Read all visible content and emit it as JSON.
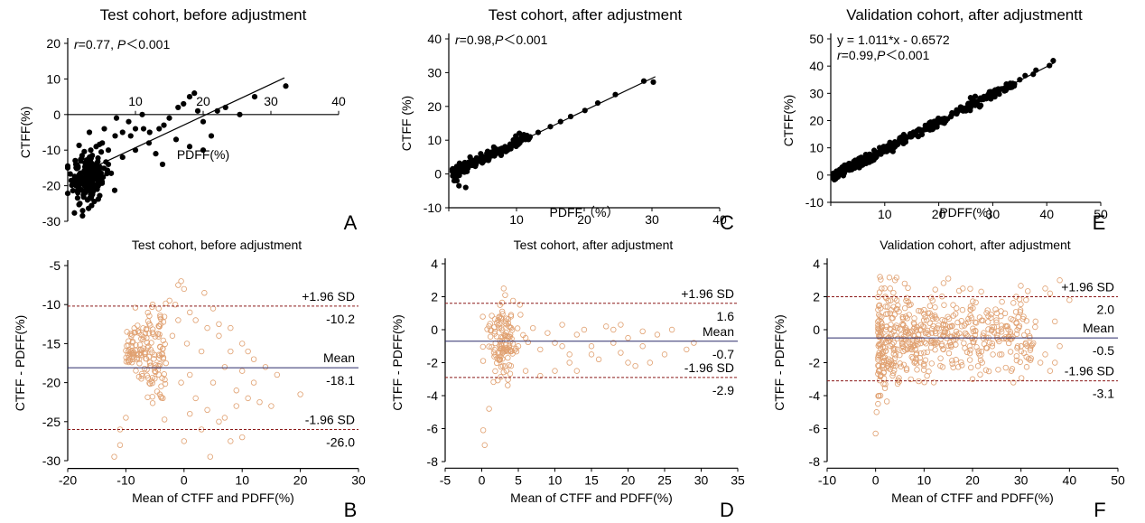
{
  "colors": {
    "scatter_fill": "#000000",
    "ba_circle": "#e0a070",
    "mean_line": "#2a2a6a",
    "limit_line": "#8b1a1a"
  },
  "chart_data": [
    {
      "id": "A",
      "panel_letter": "A",
      "type": "scatter",
      "title": "Test cohort, before adjustment",
      "xlabel": "PDFF(%)",
      "ylabel": "CTFF(%)",
      "xlim": [
        0,
        40
      ],
      "ylim": [
        -30,
        20
      ],
      "xticks": [
        0,
        10,
        20,
        30,
        40
      ],
      "yticks": [
        -30,
        -20,
        -10,
        0,
        10,
        20
      ],
      "xtick_labels": [
        "",
        "10",
        "20",
        "30",
        "40"
      ],
      "ytick_labels": [
        "-30",
        "-20",
        "-10",
        "0",
        "10",
        "20"
      ],
      "annotation_lines": [
        {
          "r": "r",
          "rest": "=0.77, ",
          "p": "P",
          "tail": "＜0.001"
        }
      ],
      "fit_line": {
        "x": [
          1.5,
          32
        ],
        "y": [
          -16.9,
          10.3
        ]
      },
      "points_xy": [
        [
          1.5,
          -22
        ],
        [
          1.8,
          -25
        ],
        [
          2.2,
          -27
        ],
        [
          1.2,
          -14
        ],
        [
          2.5,
          -20
        ],
        [
          3.4,
          -10
        ],
        [
          4.2,
          -9
        ],
        [
          5.1,
          -8
        ],
        [
          6,
          -10
        ],
        [
          7,
          -6
        ],
        [
          8.1,
          -5
        ],
        [
          9.3,
          -6
        ],
        [
          10,
          -4
        ],
        [
          11.2,
          -4
        ],
        [
          12.1,
          -5
        ],
        [
          13,
          -11
        ],
        [
          14.2,
          -3
        ],
        [
          15,
          -1
        ],
        [
          16.3,
          2
        ],
        [
          17.1,
          3
        ],
        [
          18,
          5
        ],
        [
          18.7,
          6
        ],
        [
          19.2,
          1
        ],
        [
          20,
          -2
        ],
        [
          21.2,
          -6
        ],
        [
          22.1,
          1
        ],
        [
          23.3,
          2
        ],
        [
          25.4,
          0
        ],
        [
          27.6,
          5
        ],
        [
          32.2,
          8
        ],
        [
          8.1,
          -12
        ],
        [
          10,
          -10
        ],
        [
          12,
          -8
        ],
        [
          14,
          -14
        ],
        [
          16,
          -7
        ],
        [
          18,
          -9
        ],
        [
          20,
          -10
        ],
        [
          3.5,
          -17
        ],
        [
          4.5,
          -20
        ],
        [
          6,
          -14
        ],
        [
          2.8,
          -13
        ],
        [
          3.2,
          -5
        ],
        [
          5.4,
          -4
        ],
        [
          7.2,
          -1
        ],
        [
          9,
          -2
        ],
        [
          11,
          0
        ],
        [
          13.5,
          -4
        ]
      ],
      "dense_cluster": {
        "x_range": [
          0.8,
          5.5
        ],
        "y_range": [
          -25,
          -10
        ],
        "count": 180
      },
      "x_axis_at_y": 0
    },
    {
      "id": "C",
      "panel_letter": "C",
      "type": "scatter",
      "title": "Test cohort, after adjustment",
      "xlabel": "PDFF（%）",
      "ylabel": "CTFF (%)",
      "xlim": [
        0,
        40
      ],
      "ylim": [
        -10,
        40
      ],
      "xticks": [
        0,
        10,
        20,
        30,
        40
      ],
      "yticks": [
        -10,
        0,
        10,
        20,
        30,
        40
      ],
      "xtick_labels": [
        "",
        "10",
        "20",
        "30",
        "40"
      ],
      "ytick_labels": [
        "-10",
        "0",
        "10",
        "20",
        "30",
        "40"
      ],
      "annotation_lines": [
        {
          "r": "r",
          "rest": "=0.98,",
          "p": "P",
          "tail": "＜0.001"
        }
      ],
      "fit_line": {
        "x": [
          0.5,
          30.5
        ],
        "y": [
          0,
          28.8
        ]
      },
      "points_xy": [
        [
          28.8,
          27.5
        ],
        [
          30.2,
          27.2
        ],
        [
          24.6,
          23.5
        ],
        [
          22,
          21
        ],
        [
          20.1,
          18.8
        ],
        [
          18,
          17
        ],
        [
          16.5,
          15.5
        ],
        [
          15,
          14
        ],
        [
          13.2,
          12.3
        ],
        [
          12,
          11
        ],
        [
          10.8,
          10
        ],
        [
          9.5,
          8.5
        ],
        [
          8,
          7.2
        ],
        [
          7,
          6
        ],
        [
          6.1,
          5.3
        ],
        [
          5,
          4.2
        ],
        [
          4,
          3.6
        ],
        [
          3,
          2.4
        ],
        [
          2,
          1.5
        ],
        [
          1.2,
          -2
        ],
        [
          2.5,
          -4
        ],
        [
          1.5,
          -3.5
        ],
        [
          0.8,
          -2
        ]
      ],
      "dense_cluster": {
        "x_range": [
          0.5,
          12
        ],
        "y_range": [
          -1,
          11
        ],
        "count": 160,
        "linear": {
          "slope": 0.96,
          "intercept": -0.2,
          "jitter": 1.6
        }
      },
      "x_axis_at_y": -10
    },
    {
      "id": "E",
      "panel_letter": "E",
      "type": "scatter",
      "title": "Validation cohort, after adjustmentt",
      "xlabel": "PDFF(%)",
      "ylabel": "CTFF(%)",
      "xlim": [
        0,
        50
      ],
      "ylim": [
        -10,
        50
      ],
      "xticks": [
        0,
        10,
        20,
        30,
        40,
        50
      ],
      "yticks": [
        -10,
        0,
        10,
        20,
        30,
        40,
        50
      ],
      "xtick_labels": [
        "",
        "10",
        "20",
        "30",
        "40",
        "50"
      ],
      "ytick_labels": [
        "-10",
        "0",
        "10",
        "20",
        "30",
        "40",
        "50"
      ],
      "annotation_lines": [
        {
          "r": "",
          "rest": "y = 1.011*x - 0.6572",
          "p": "",
          "tail": ""
        },
        {
          "r": "r",
          "rest": "=0.99,",
          "p": "P",
          "tail": "＜0.001"
        }
      ],
      "fit_line": {
        "x": [
          0.5,
          41.5
        ],
        "y": [
          -0.15,
          41.3
        ]
      },
      "points_xy": [
        [
          41.2,
          42
        ],
        [
          40.5,
          40.2
        ],
        [
          38,
          38.5
        ],
        [
          37.5,
          37
        ],
        [
          36,
          36.5
        ],
        [
          35,
          35
        ],
        [
          34,
          33.4
        ]
      ],
      "dense_cluster": {
        "x_range": [
          0.5,
          34
        ],
        "y_range": [
          -2,
          35
        ],
        "count": 420,
        "linear": {
          "slope": 1.011,
          "intercept": -0.66,
          "jitter": 1.8
        }
      },
      "x_axis_at_y": -10
    },
    {
      "id": "B",
      "panel_letter": "B",
      "type": "scatter",
      "title": "Test cohort, before adjustment",
      "xlabel": "Mean of CTFF and PDFF(%)",
      "ylabel": "CTFF - PDFF(%)",
      "xlim": [
        -20,
        30
      ],
      "ylim": [
        -30,
        -5
      ],
      "xticks": [
        -20,
        -10,
        0,
        10,
        20,
        30
      ],
      "yticks": [
        -30,
        -25,
        -20,
        -15,
        -10,
        -5
      ],
      "xtick_labels": [
        "-20",
        "-10",
        "0",
        "10",
        "20",
        "30"
      ],
      "ytick_labels": [
        "-30",
        "-25",
        "-20",
        "-15",
        "-10",
        "-5"
      ],
      "upper_loa": -10.2,
      "mean": -18.1,
      "lower_loa": -26.0,
      "upper_label": "+1.96 SD",
      "upper_value": "-10.2",
      "mean_label": "Mean",
      "mean_value": "-18.1",
      "lower_label": "-1.96 SD",
      "lower_value": "-26.0",
      "points_xy": [
        [
          -0.5,
          -7
        ],
        [
          0,
          -8
        ],
        [
          -1,
          -7.5
        ],
        [
          3.5,
          -8.5
        ],
        [
          -2.5,
          -9.5
        ],
        [
          -1.5,
          -10
        ],
        [
          1,
          -11
        ],
        [
          2,
          -12
        ],
        [
          4,
          -13
        ],
        [
          6,
          -12.5
        ],
        [
          8,
          -13
        ],
        [
          10,
          -15
        ],
        [
          12,
          -17
        ],
        [
          14,
          -18
        ],
        [
          16,
          -19
        ],
        [
          2,
          -22
        ],
        [
          4,
          -23.5
        ],
        [
          6,
          -25
        ],
        [
          8,
          -27.5
        ],
        [
          10,
          -27
        ],
        [
          0,
          -27.5
        ],
        [
          -12,
          -29.5
        ],
        [
          -11,
          -28
        ],
        [
          -11,
          -26
        ],
        [
          -10,
          -24.5
        ],
        [
          3,
          -16
        ],
        [
          5,
          -20
        ],
        [
          7,
          -18
        ],
        [
          9,
          -21
        ],
        [
          11,
          -22
        ],
        [
          13,
          -22.5
        ],
        [
          15,
          -23
        ],
        [
          1,
          -19
        ],
        [
          0.5,
          -15
        ],
        [
          -0.5,
          -20
        ],
        [
          8,
          -16
        ],
        [
          6,
          -14
        ],
        [
          10,
          -18.5
        ],
        [
          5,
          -10.5
        ],
        [
          -1,
          -12
        ],
        [
          20,
          -21.5
        ],
        [
          4.5,
          -29.5
        ],
        [
          7,
          -24.5
        ],
        [
          9,
          -23
        ],
        [
          1,
          -24
        ],
        [
          3,
          -26
        ],
        [
          12,
          -20
        ],
        [
          11,
          -16
        ],
        [
          -2,
          -14
        ]
      ],
      "dense_cluster": {
        "x_range": [
          -10,
          -3
        ],
        "y_range": [
          -24,
          -11
        ],
        "count": 160,
        "tri": true
      },
      "x_axis_at_y": -31
    },
    {
      "id": "D",
      "panel_letter": "D",
      "type": "scatter",
      "title": "Test cohort, after adjustment",
      "xlabel": "Mean of CTFF and PDFF(%)",
      "ylabel": "CTFF - PDFF(%)",
      "xlim": [
        -5,
        35
      ],
      "ylim": [
        -8,
        4
      ],
      "xticks": [
        -5,
        0,
        5,
        10,
        15,
        20,
        25,
        30,
        35
      ],
      "yticks": [
        -8,
        -6,
        -4,
        -2,
        0,
        2,
        4
      ],
      "xtick_labels": [
        "-5",
        "0",
        "5",
        "10",
        "15",
        "20",
        "25",
        "30",
        "35"
      ],
      "ytick_labels": [
        "-8",
        "-6",
        "-4",
        "-2",
        "0",
        "2",
        "4"
      ],
      "upper_loa": 1.6,
      "mean": -0.7,
      "lower_loa": -2.9,
      "upper_label": "+1.96 SD",
      "upper_value": "1.6",
      "mean_label": "Mean",
      "mean_value": "-0.7",
      "lower_label": "-1.96 SD",
      "lower_value": "-2.9",
      "points_xy": [
        [
          0.2,
          -6.1
        ],
        [
          0.4,
          -7
        ],
        [
          1,
          -4.8
        ],
        [
          3,
          2.5
        ],
        [
          3.2,
          2.1
        ],
        [
          2.5,
          1.5
        ],
        [
          2.8,
          1.1
        ],
        [
          4,
          0.8
        ],
        [
          6,
          -0.5
        ],
        [
          8,
          -1.2
        ],
        [
          10,
          -0.8
        ],
        [
          12,
          -1.5
        ],
        [
          14,
          0
        ],
        [
          16,
          -1.8
        ],
        [
          18,
          0
        ],
        [
          20,
          -0.5
        ],
        [
          22,
          -1
        ],
        [
          24,
          -0.3
        ],
        [
          26,
          0
        ],
        [
          28,
          -1.2
        ],
        [
          29,
          -0.8
        ],
        [
          25,
          -1.5
        ],
        [
          23,
          -2
        ],
        [
          21,
          -2.2
        ],
        [
          19,
          -1.4
        ],
        [
          17,
          0.2
        ],
        [
          15,
          -1
        ],
        [
          13,
          -0.3
        ],
        [
          11,
          0.3
        ],
        [
          9,
          -0.2
        ],
        [
          7,
          0.1
        ],
        [
          5,
          -1
        ],
        [
          8,
          -2.8
        ],
        [
          10,
          -2.5
        ],
        [
          12,
          -2
        ],
        [
          15,
          -1.5
        ],
        [
          18,
          -0.8
        ],
        [
          20,
          -2
        ],
        [
          6,
          -2.5
        ],
        [
          4,
          -2.2
        ],
        [
          11,
          -1
        ],
        [
          13,
          -2.5
        ],
        [
          19,
          0.3
        ],
        [
          22,
          -0.1
        ]
      ],
      "dense_cluster": {
        "x_range": [
          1,
          5
        ],
        "y_range": [
          -3,
          1.5
        ],
        "count": 120
      },
      "x_axis_at_y": -8.4
    },
    {
      "id": "F",
      "panel_letter": "F",
      "type": "scatter",
      "title": "Validation cohort, after adjustment",
      "xlabel": "Mean of CTFF and PDFF(%)",
      "ylabel": "CTFF - PDFF(%)",
      "xlim": [
        -10,
        50
      ],
      "ylim": [
        -8,
        4
      ],
      "xticks": [
        -10,
        0,
        10,
        20,
        30,
        40,
        50
      ],
      "yticks": [
        -8,
        -6,
        -4,
        -2,
        0,
        2,
        4
      ],
      "xtick_labels": [
        "-10",
        "0",
        "10",
        "20",
        "30",
        "40",
        "50"
      ],
      "ytick_labels": [
        "-8",
        "-6",
        "-4",
        "-2",
        "0",
        "2",
        "4"
      ],
      "upper_loa": 2.0,
      "mean": -0.5,
      "lower_loa": -3.1,
      "upper_label": "+1.96 SD",
      "upper_value": "2.0",
      "mean_label": "Mean",
      "mean_value": "-0.5",
      "lower_label": "-1.96 SD",
      "lower_value": "-3.1",
      "points_xy": [
        [
          0,
          -6.3
        ],
        [
          0.2,
          -5
        ],
        [
          0.5,
          -4.5
        ],
        [
          1,
          -4
        ],
        [
          15,
          3.1
        ],
        [
          35,
          2.5
        ],
        [
          38,
          3
        ],
        [
          36,
          2.2
        ],
        [
          40,
          1.8
        ],
        [
          38,
          -1
        ],
        [
          37,
          -2
        ],
        [
          36,
          -2.5
        ],
        [
          34,
          -2
        ],
        [
          33,
          0.5
        ],
        [
          30,
          -1
        ],
        [
          28,
          -2.5
        ],
        [
          26,
          -1.5
        ],
        [
          24,
          0
        ],
        [
          22,
          -2
        ],
        [
          20,
          -3
        ],
        [
          18,
          2.5
        ],
        [
          16,
          1.5
        ],
        [
          14,
          -1.2
        ],
        [
          12,
          -3.2
        ],
        [
          10,
          1.2
        ],
        [
          8,
          -2
        ],
        [
          6,
          2.8
        ],
        [
          4,
          3
        ],
        [
          3,
          2.5
        ],
        [
          2,
          2
        ],
        [
          25,
          1
        ],
        [
          29,
          2
        ],
        [
          31,
          -0.8
        ],
        [
          35,
          -1.5
        ],
        [
          37,
          0.5
        ]
      ],
      "dense_cluster": {
        "x_range": [
          0.5,
          33
        ],
        "y_range": [
          -3.5,
          2.5
        ],
        "count": 520,
        "skew_left": true
      },
      "x_axis_at_y": -8.4
    }
  ]
}
